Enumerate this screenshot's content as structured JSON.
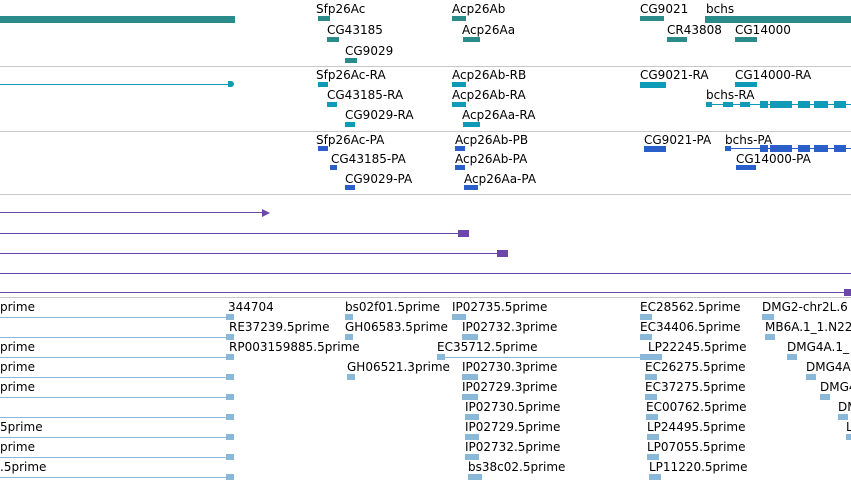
{
  "colors": {
    "gene": "#2b8a8a",
    "transcript": "#0f9bb8",
    "protein": "#2a5fc9",
    "purple": "#6a47a8",
    "est": "#8ab8d8",
    "separator": "#c8c8c8"
  },
  "gene_track": {
    "labels": [
      "Sfp26Ac",
      "CG43185",
      "CG9029",
      "Acp26Ab",
      "Acp26Aa",
      "CG9021",
      "bchs",
      "CR43808",
      "CG14000"
    ]
  },
  "transcript_track": {
    "labels": [
      "Sfp26Ac-RA",
      "CG43185-RA",
      "CG9029-RA",
      "Acp26Ab-RB",
      "Acp26Ab-RA",
      "Acp26Aa-RA",
      "CG9021-RA",
      "CG14000-RA",
      "bchs-RA"
    ]
  },
  "protein_track": {
    "labels": [
      "Sfp26Ac-PA",
      "CG43185-PA",
      "CG9029-PA",
      "Acp26Ab-PB",
      "Acp26Ab-PA",
      "Acp26Aa-PA",
      "CG9021-PA",
      "bchs-PA",
      "CG14000-PA"
    ]
  },
  "est_track": {
    "labels": [
      "prime",
      "344704",
      "bs02f01.5prime",
      "IP02735.5prime",
      "EC28562.5prime",
      "DMG2-chr2L.6",
      "RE37239.5prime",
      "GH06583.5prime",
      "IP02732.3prime",
      "EC34406.5prime",
      "MB6A.1_1.N22",
      "prime",
      "RP003159885.5prime",
      "EC35712.5prime",
      "LP22245.5prime",
      "DMG4A.1_",
      "prime",
      "GH06521.3prime",
      "IP02730.3prime",
      "EC26275.5prime",
      "DMG4A",
      "prime",
      "IP02729.3prime",
      "EC37275.5prime",
      "DMG4",
      "IP02730.5prime",
      "EC00762.5prime",
      "DM",
      "5prime",
      "IP02729.5prime",
      "LP24495.5prime",
      "L",
      "prime",
      "IP02732.5prime",
      "LP07055.5prime",
      ".5prime",
      "bs38c02.5prime",
      "LP11220.5prime"
    ]
  }
}
